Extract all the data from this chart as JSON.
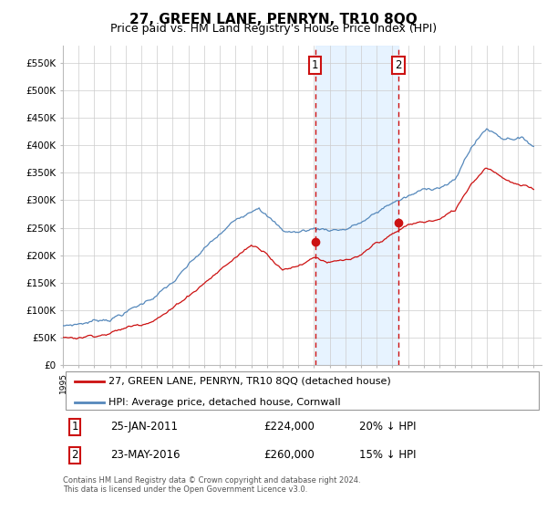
{
  "title": "27, GREEN LANE, PENRYN, TR10 8QQ",
  "subtitle": "Price paid vs. HM Land Registry's House Price Index (HPI)",
  "title_fontsize": 11,
  "subtitle_fontsize": 9,
  "hpi_color": "#5588bb",
  "price_color": "#cc1111",
  "transaction1_date": "25-JAN-2011",
  "transaction1_price": 224000,
  "transaction1_label": "20% ↓ HPI",
  "transaction2_date": "23-MAY-2016",
  "transaction2_price": 260000,
  "transaction2_label": "15% ↓ HPI",
  "legend_label1": "27, GREEN LANE, PENRYN, TR10 8QQ (detached house)",
  "legend_label2": "HPI: Average price, detached house, Cornwall",
  "footer": "Contains HM Land Registry data © Crown copyright and database right 2024.\nThis data is licensed under the Open Government Licence v3.0.",
  "ylim": [
    0,
    580000
  ],
  "ytick_vals": [
    0,
    50000,
    100000,
    150000,
    200000,
    250000,
    300000,
    350000,
    400000,
    450000,
    500000,
    550000
  ],
  "background_color": "#ffffff",
  "grid_color": "#cccccc",
  "vline1_x": 2011.07,
  "vline2_x": 2016.39,
  "shaded_start": 2011.07,
  "shaded_end": 2016.39,
  "xmin": 1995,
  "xmax": 2025.5
}
